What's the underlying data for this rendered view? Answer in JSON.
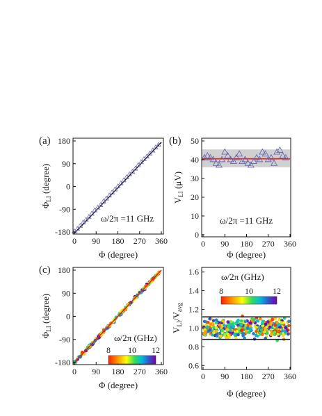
{
  "chart_data": [
    {
      "panel_label": "(a)",
      "type": "scatter",
      "xlabel": "Φ (degree)",
      "ylabel_main": "Φ",
      "ylabel_sub": "LI",
      "ylabel_unit": " (degree)",
      "xlim": [
        0,
        360
      ],
      "ylim": [
        -180,
        180
      ],
      "xticks": [
        "0",
        "90",
        "180",
        "270",
        "360"
      ],
      "yticks": [
        "-180",
        "-90",
        "0",
        "90",
        "180"
      ],
      "annotation": "ω/2π =11 GHz",
      "marker": "triangle-open",
      "marker_color": "#8080c0",
      "fit_color": "#111111",
      "fit_line": {
        "x": [
          0,
          360
        ],
        "y": [
          -185,
          175
        ]
      },
      "x": [
        0,
        12,
        24,
        36,
        48,
        60,
        72,
        84,
        96,
        108,
        120,
        132,
        144,
        156,
        168,
        180,
        192,
        204,
        216,
        228,
        240,
        252,
        264,
        276,
        288,
        300,
        312,
        324,
        336,
        348
      ],
      "y": [
        -178,
        -168,
        -156,
        -143,
        -132,
        -121,
        -108,
        -95,
        -84,
        -74,
        -60,
        -48,
        -36,
        -24,
        -12,
        0,
        12,
        24,
        36,
        48,
        58,
        70,
        84,
        96,
        108,
        118,
        130,
        142,
        154,
        164
      ]
    },
    {
      "panel_label": "(b)",
      "type": "scatter",
      "xlabel": "Φ (degree)",
      "ylabel_main": "V",
      "ylabel_sub": "LI",
      "ylabel_unit": " (μV)",
      "xlim": [
        0,
        360
      ],
      "ylim": [
        0,
        50
      ],
      "xticks": [
        "0",
        "90",
        "180",
        "270",
        "360"
      ],
      "yticks": [
        "0",
        "10",
        "20",
        "30",
        "40",
        "50"
      ],
      "annotation": "ω/2π =11 GHz",
      "marker": "triangle-open",
      "marker_color": "#6a6ab0",
      "mean_line": 40.5,
      "mean_color": "#dd2222",
      "band": [
        36,
        45.5
      ],
      "band_color": "#d0d0d0",
      "x": [
        6,
        18,
        30,
        42,
        54,
        66,
        78,
        90,
        102,
        114,
        126,
        138,
        150,
        162,
        174,
        186,
        198,
        210,
        222,
        234,
        246,
        258,
        270,
        282,
        294,
        306,
        318,
        330,
        342
      ],
      "y": [
        41,
        42,
        41,
        40,
        38,
        37,
        40,
        44,
        42,
        40,
        39,
        41,
        43,
        39,
        40,
        38,
        37,
        39,
        41,
        40,
        44,
        43,
        40,
        41,
        38,
        44,
        45,
        42,
        41
      ]
    },
    {
      "panel_label": "(c)",
      "type": "scatter",
      "xlabel": "Φ (degree)",
      "ylabel_main": "Φ",
      "ylabel_sub": "LI",
      "ylabel_unit": " (degree)",
      "xlim": [
        0,
        360
      ],
      "ylim": [
        -180,
        180
      ],
      "xticks": [
        "0",
        "90",
        "180",
        "270",
        "360"
      ],
      "yticks": [
        "-180",
        "-90",
        "0",
        "90",
        "180"
      ],
      "colorbar_title": "ω/2π (GHz)",
      "colorbar_ticks": [
        "8",
        "10",
        "12"
      ],
      "colorbar_range": [
        8,
        12
      ],
      "fit_line": {
        "x": [
          0,
          360
        ],
        "y": [
          -180,
          180
        ]
      },
      "fit_color": "#dd2222",
      "x_range": [
        0,
        356
      ],
      "spread": 6,
      "n_points": 220
    },
    {
      "panel_label": "",
      "type": "scatter",
      "xlabel": "Φ (degree)",
      "ylabel_main": "V",
      "ylabel_sub": "LI",
      "ylabel_mid": "/V",
      "ylabel_sub2": "avg",
      "xlim": [
        0,
        360
      ],
      "ylim": [
        0.58,
        1.62
      ],
      "xticks": [
        "0",
        "90",
        "180",
        "270",
        "360"
      ],
      "yticks": [
        "0.6",
        "0.8",
        "1.0",
        "1.2",
        "1.4",
        "1.6"
      ],
      "ytick_values": [
        0.6,
        0.8,
        1.0,
        1.2,
        1.4,
        1.6
      ],
      "colorbar_title": "ω/2π (GHz)",
      "colorbar_ticks": [
        "8",
        "10",
        "12"
      ],
      "colorbar_range": [
        8,
        12
      ],
      "bounds": [
        0.88,
        1.12
      ],
      "bound_color": "#111111",
      "y_range": [
        0.8,
        1.2
      ],
      "n_points": 420
    }
  ]
}
